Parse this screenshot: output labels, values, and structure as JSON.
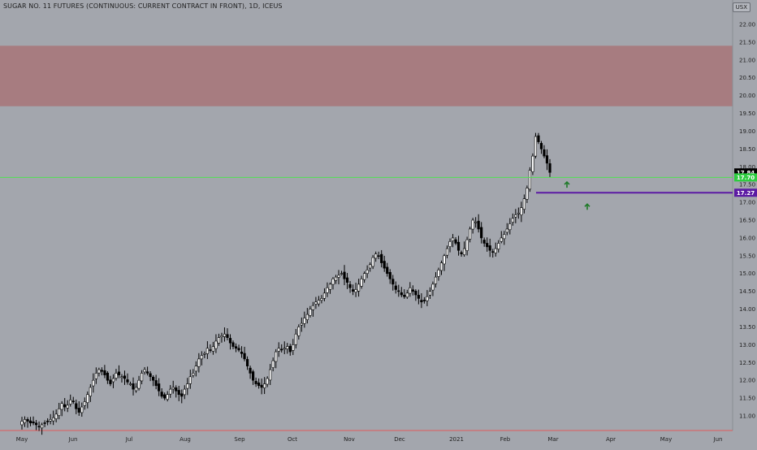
{
  "header": {
    "title": "SUGAR NO. 11 FUTURES (CONTINUOUS: CURRENT CONTRACT IN FRONT), 1D, ICEUS",
    "currency": "USX"
  },
  "colors": {
    "background": "#a3a6ad",
    "zone": "#a77c80",
    "green_line": "#52e052",
    "purple_line": "#5c1aa3",
    "candle_up": "#ffffff",
    "candle_down": "#000000",
    "arrow": "#1e7a28",
    "axis_bottom": "#e05a5a",
    "last_price_bg": "#000000",
    "green_tag_bg": "#2ecc40",
    "purple_tag_bg": "#5c1aa3"
  },
  "chart_data": {
    "type": "candlestick",
    "symbol": "SUGAR NO. 11 FUTURES (CONTINUOUS: CURRENT CONTRACT IN FRONT), 1D, ICEUS",
    "ylim": [
      10.75,
      22.3
    ],
    "y_ticks": [
      "11.00",
      "11.50",
      "12.00",
      "12.50",
      "13.00",
      "13.50",
      "14.00",
      "14.50",
      "15.00",
      "15.50",
      "16.00",
      "16.50",
      "17.00",
      "17.50",
      "18.00",
      "18.50",
      "19.00",
      "19.50",
      "20.00",
      "20.50",
      "21.00",
      "21.50",
      "22.00"
    ],
    "x_ticks": [
      "May",
      "Jun",
      "Jul",
      "Aug",
      "Sep",
      "Oct",
      "Nov",
      "Dec",
      "2021",
      "Feb",
      "Mar",
      "Apr",
      "May",
      "Jun"
    ],
    "grid": false,
    "resistance_zone": [
      19.7,
      21.4
    ],
    "horizontal_lines": [
      {
        "label": "17.70",
        "value": 17.7,
        "color": "#52e052"
      },
      {
        "label": "17.27",
        "value": 17.27,
        "color": "#5c1aa3"
      }
    ],
    "last_price": {
      "label": "17.84",
      "value": 17.84
    },
    "closes": [
      10.85,
      10.9,
      10.85,
      10.8,
      10.8,
      10.75,
      10.7,
      10.75,
      10.8,
      10.85,
      10.9,
      10.95,
      11.05,
      11.2,
      11.35,
      11.25,
      11.3,
      11.45,
      11.4,
      11.2,
      11.1,
      11.25,
      11.4,
      11.6,
      11.8,
      12.0,
      12.2,
      12.3,
      12.25,
      12.15,
      12.0,
      11.9,
      12.05,
      12.2,
      12.15,
      12.1,
      12.05,
      11.95,
      11.9,
      11.75,
      11.8,
      12.0,
      12.2,
      12.3,
      12.2,
      12.1,
      12.0,
      11.85,
      11.7,
      11.55,
      11.5,
      11.6,
      11.75,
      11.8,
      11.7,
      11.6,
      11.55,
      11.75,
      11.9,
      12.1,
      12.2,
      12.4,
      12.6,
      12.7,
      12.75,
      12.9,
      12.85,
      12.95,
      13.1,
      13.2,
      13.25,
      13.3,
      13.2,
      13.05,
      12.95,
      12.9,
      12.85,
      12.75,
      12.6,
      12.4,
      12.2,
      12.0,
      11.9,
      11.85,
      11.8,
      11.9,
      12.05,
      12.3,
      12.55,
      12.8,
      12.9,
      12.85,
      12.9,
      12.95,
      12.8,
      13.0,
      13.3,
      13.5,
      13.6,
      13.75,
      13.85,
      14.0,
      14.1,
      14.2,
      14.25,
      14.3,
      14.45,
      14.6,
      14.7,
      14.85,
      14.9,
      14.95,
      15.0,
      14.85,
      14.75,
      14.6,
      14.5,
      14.55,
      14.7,
      14.85,
      15.0,
      15.1,
      15.25,
      15.45,
      15.55,
      15.5,
      15.3,
      15.15,
      15.0,
      14.85,
      14.7,
      14.55,
      14.5,
      14.4,
      14.35,
      14.45,
      14.6,
      14.5,
      14.4,
      14.3,
      14.2,
      14.25,
      14.35,
      14.5,
      14.7,
      14.9,
      15.1,
      15.3,
      15.5,
      15.7,
      15.9,
      16.0,
      15.85,
      15.65,
      15.55,
      15.7,
      15.95,
      16.25,
      16.5,
      16.45,
      16.25,
      16.0,
      15.85,
      15.75,
      15.65,
      15.6,
      15.7,
      15.85,
      16.0,
      16.1,
      16.25,
      16.4,
      16.55,
      16.65,
      16.7,
      16.85,
      17.1,
      17.4,
      17.9,
      18.3,
      18.85,
      18.7,
      18.5,
      18.3,
      18.1,
      17.84
    ],
    "dates": [
      "May",
      "Jun",
      "Jul",
      "Aug",
      "Sep",
      "Oct",
      "Nov",
      "Dec",
      "2021",
      "Feb",
      "Mar",
      "Apr",
      "May",
      "Jun"
    ]
  }
}
